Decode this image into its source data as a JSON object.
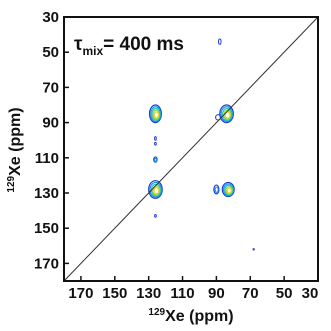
{
  "chart_data": {
    "type": "contour",
    "xlabel": {
      "sup": "129",
      "main": "Xe (ppm)"
    },
    "ylabel": {
      "sup": "129",
      "main": "Xe (ppm)"
    },
    "annotation": {
      "symbol": "τ",
      "sub": "mix",
      "rest": "= 400 ms"
    },
    "x_range": [
      180,
      30
    ],
    "y_range": [
      30,
      180
    ],
    "x_reversed": true,
    "y_reversed": true,
    "x_ticks": [
      "170",
      "150",
      "130",
      "110",
      "90",
      "70",
      "50",
      "30"
    ],
    "y_ticks": [
      "30",
      "50",
      "70",
      "90",
      "110",
      "130",
      "150",
      "170"
    ],
    "diagonal": true,
    "contour_colors": [
      "#1f3bd6",
      "#1a9be0",
      "#22c7b8",
      "#9bd33a",
      "#f0d22a"
    ],
    "peaks": [
      {
        "x": 126,
        "y": 128,
        "w": 8,
        "h": 10,
        "levels": 5
      },
      {
        "x": 126,
        "y": 85,
        "w": 7,
        "h": 10,
        "levels": 5
      },
      {
        "x": 84,
        "y": 85,
        "w": 8,
        "h": 10,
        "levels": 5
      },
      {
        "x": 83,
        "y": 128,
        "w": 7,
        "h": 8,
        "levels": 5
      },
      {
        "x": 90,
        "y": 128,
        "w": 3,
        "h": 5,
        "levels": 2
      },
      {
        "x": 89,
        "y": 87,
        "w": 3,
        "h": 3,
        "levels": 1
      },
      {
        "x": 126,
        "y": 111,
        "w": 2,
        "h": 3,
        "levels": 2
      },
      {
        "x": 126,
        "y": 99,
        "w": 1,
        "h": 2,
        "levels": 1
      },
      {
        "x": 126,
        "y": 102,
        "w": 1,
        "h": 1.5,
        "levels": 1
      },
      {
        "x": 88,
        "y": 44,
        "w": 1.5,
        "h": 3,
        "levels": 1
      },
      {
        "x": 126,
        "y": 143,
        "w": 1,
        "h": 1.5,
        "levels": 1
      },
      {
        "x": 68,
        "y": 162,
        "w": 0.8,
        "h": 0.8,
        "levels": 1
      }
    ]
  }
}
